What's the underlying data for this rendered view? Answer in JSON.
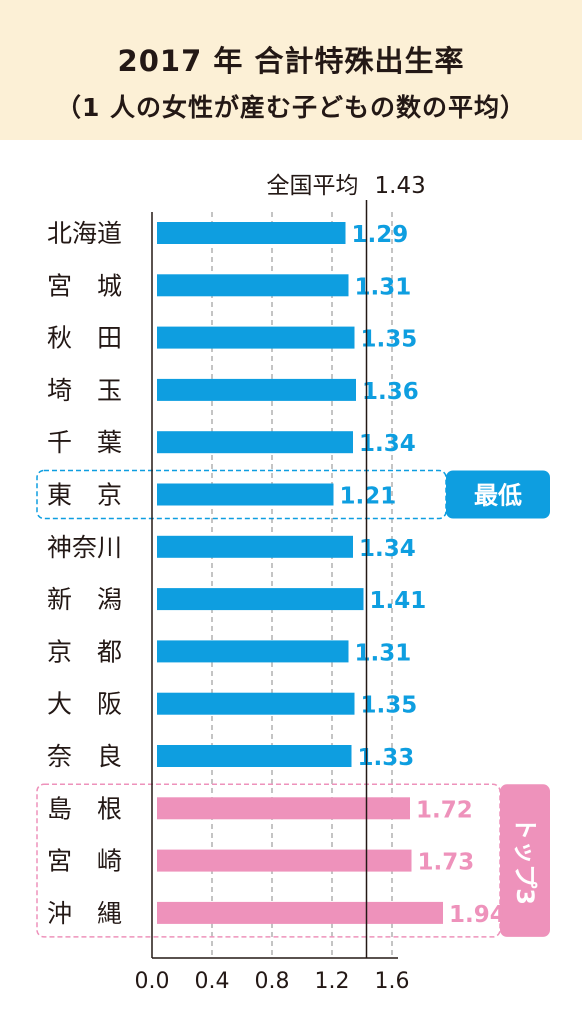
{
  "header": {
    "title_line1": "2017 年 合計特殊出生率",
    "title_line2": "（1 人の女性が産む子どもの数の平均）"
  },
  "colors": {
    "header_bg": "#fcf0d6",
    "bar_blue": "#0e9ee0",
    "bar_pink": "#ee92bb",
    "label_blue": "#0e9ee0",
    "label_pink": "#ee92bb",
    "axis": "#231815"
  },
  "chart_data": {
    "type": "bar",
    "orientation": "horizontal",
    "categories": [
      "北海道",
      "宮　城",
      "秋　田",
      "埼　玉",
      "千　葉",
      "東　京",
      "神奈川",
      "新　潟",
      "京　都",
      "大　阪",
      "奈　良",
      "島　根",
      "宮　崎",
      "沖　縄"
    ],
    "values": [
      1.29,
      1.31,
      1.35,
      1.36,
      1.34,
      1.21,
      1.34,
      1.41,
      1.31,
      1.35,
      1.33,
      1.72,
      1.73,
      1.94
    ],
    "value_labels": [
      "1.29",
      "1.31",
      "1.35",
      "1.36",
      "1.34",
      "1.21",
      "1.34",
      "1.41",
      "1.31",
      "1.35",
      "1.33",
      "1.72",
      "1.73",
      "1.94"
    ],
    "groups": [
      "blue",
      "blue",
      "blue",
      "blue",
      "blue",
      "blue",
      "blue",
      "blue",
      "blue",
      "blue",
      "blue",
      "pink",
      "pink",
      "pink"
    ],
    "xlim": [
      0,
      1.6
    ],
    "xticks": [
      0.0,
      0.4,
      0.8,
      1.2,
      1.6
    ],
    "xtick_labels": [
      "0.0",
      "0.4",
      "0.8",
      "1.2",
      "1.6"
    ],
    "grid": "dashed vertical",
    "reference_line": {
      "value": 1.43,
      "label": "全国平均",
      "value_label": "1.43"
    },
    "highlights": [
      {
        "label": "最低",
        "rows": [
          5
        ],
        "color": "#0e9ee0"
      },
      {
        "label": "トップ3",
        "rows": [
          11,
          12,
          13
        ],
        "color": "#ee92bb"
      }
    ]
  }
}
